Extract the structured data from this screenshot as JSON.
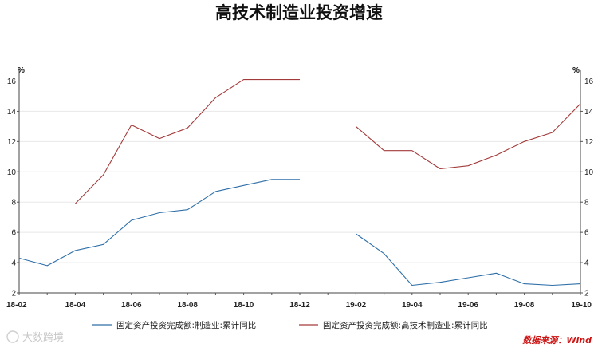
{
  "chart_data": {
    "type": "line",
    "title": "高技术制造业投资增速",
    "y_unit_left": "%",
    "y_unit_right": "%",
    "ylim": [
      2,
      16.5
    ],
    "yticks": [
      2,
      4,
      6,
      8,
      10,
      12,
      14,
      16
    ],
    "grid": true,
    "legend_position": "bottom",
    "categories": [
      "18-02",
      "18-03",
      "18-04",
      "18-05",
      "18-06",
      "18-07",
      "18-08",
      "18-09",
      "18-10",
      "18-11",
      "18-12",
      "19-01",
      "19-02",
      "19-03",
      "19-04",
      "19-05",
      "19-06",
      "19-07",
      "19-08",
      "19-09",
      "19-10"
    ],
    "xtick_labels": [
      "18-02",
      "18-04",
      "18-06",
      "18-08",
      "18-10",
      "18-12",
      "19-02",
      "19-04",
      "19-06",
      "19-08",
      "19-10"
    ],
    "series": [
      {
        "name": "固定资产投资完成额:制造业:累计同比",
        "color": "#2e6fa8",
        "values": [
          4.3,
          3.8,
          4.8,
          5.2,
          6.8,
          7.3,
          7.5,
          8.7,
          9.1,
          9.5,
          9.5,
          null,
          5.9,
          4.6,
          2.5,
          2.7,
          3.0,
          3.3,
          2.6,
          2.5,
          2.6
        ]
      },
      {
        "name": "固定资产投资完成额:高技术制造业:累计同比",
        "color": "#a33a3a",
        "values": [
          null,
          null,
          7.9,
          9.8,
          13.1,
          12.2,
          12.9,
          14.9,
          16.1,
          16.1,
          16.1,
          null,
          13.0,
          11.4,
          11.4,
          10.2,
          10.4,
          11.1,
          12.0,
          12.6,
          14.5
        ]
      }
    ]
  },
  "source_label": "数据来源：Wind",
  "watermark": "大数跨境",
  "colors": {
    "source_text": "#cc1111",
    "grid": "#e8e8e8"
  }
}
